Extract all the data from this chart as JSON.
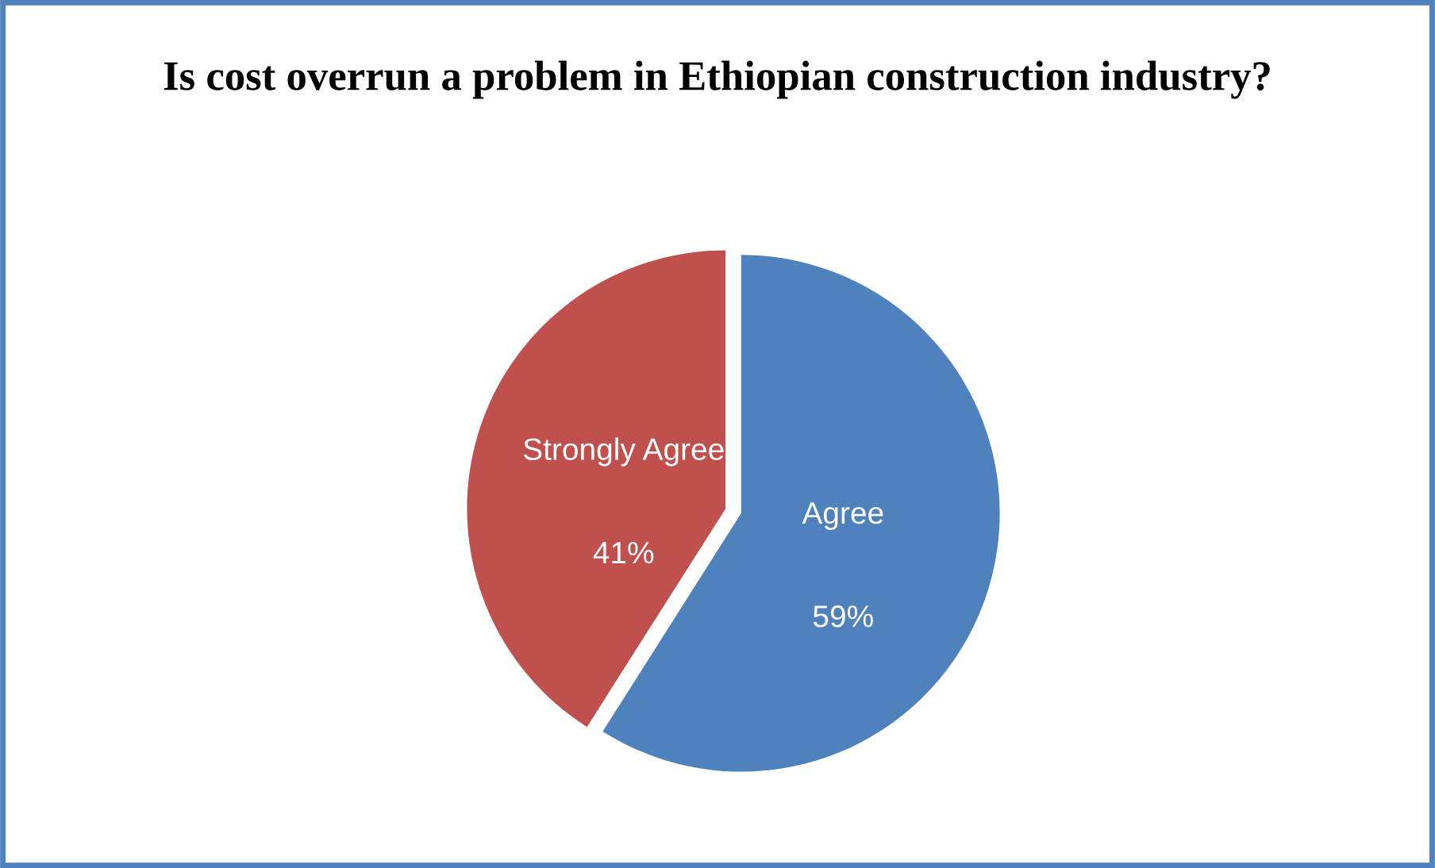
{
  "chart_data": {
    "type": "pie",
    "title": "Is cost overrun a problem in Ethiopian construction industry?",
    "categories": [
      "Agree",
      "Strongly Agree"
    ],
    "values": [
      59,
      41
    ],
    "value_labels": [
      "59%",
      "41%"
    ],
    "colors": [
      "#4f81bd",
      "#c0504d"
    ],
    "legend": false
  }
}
